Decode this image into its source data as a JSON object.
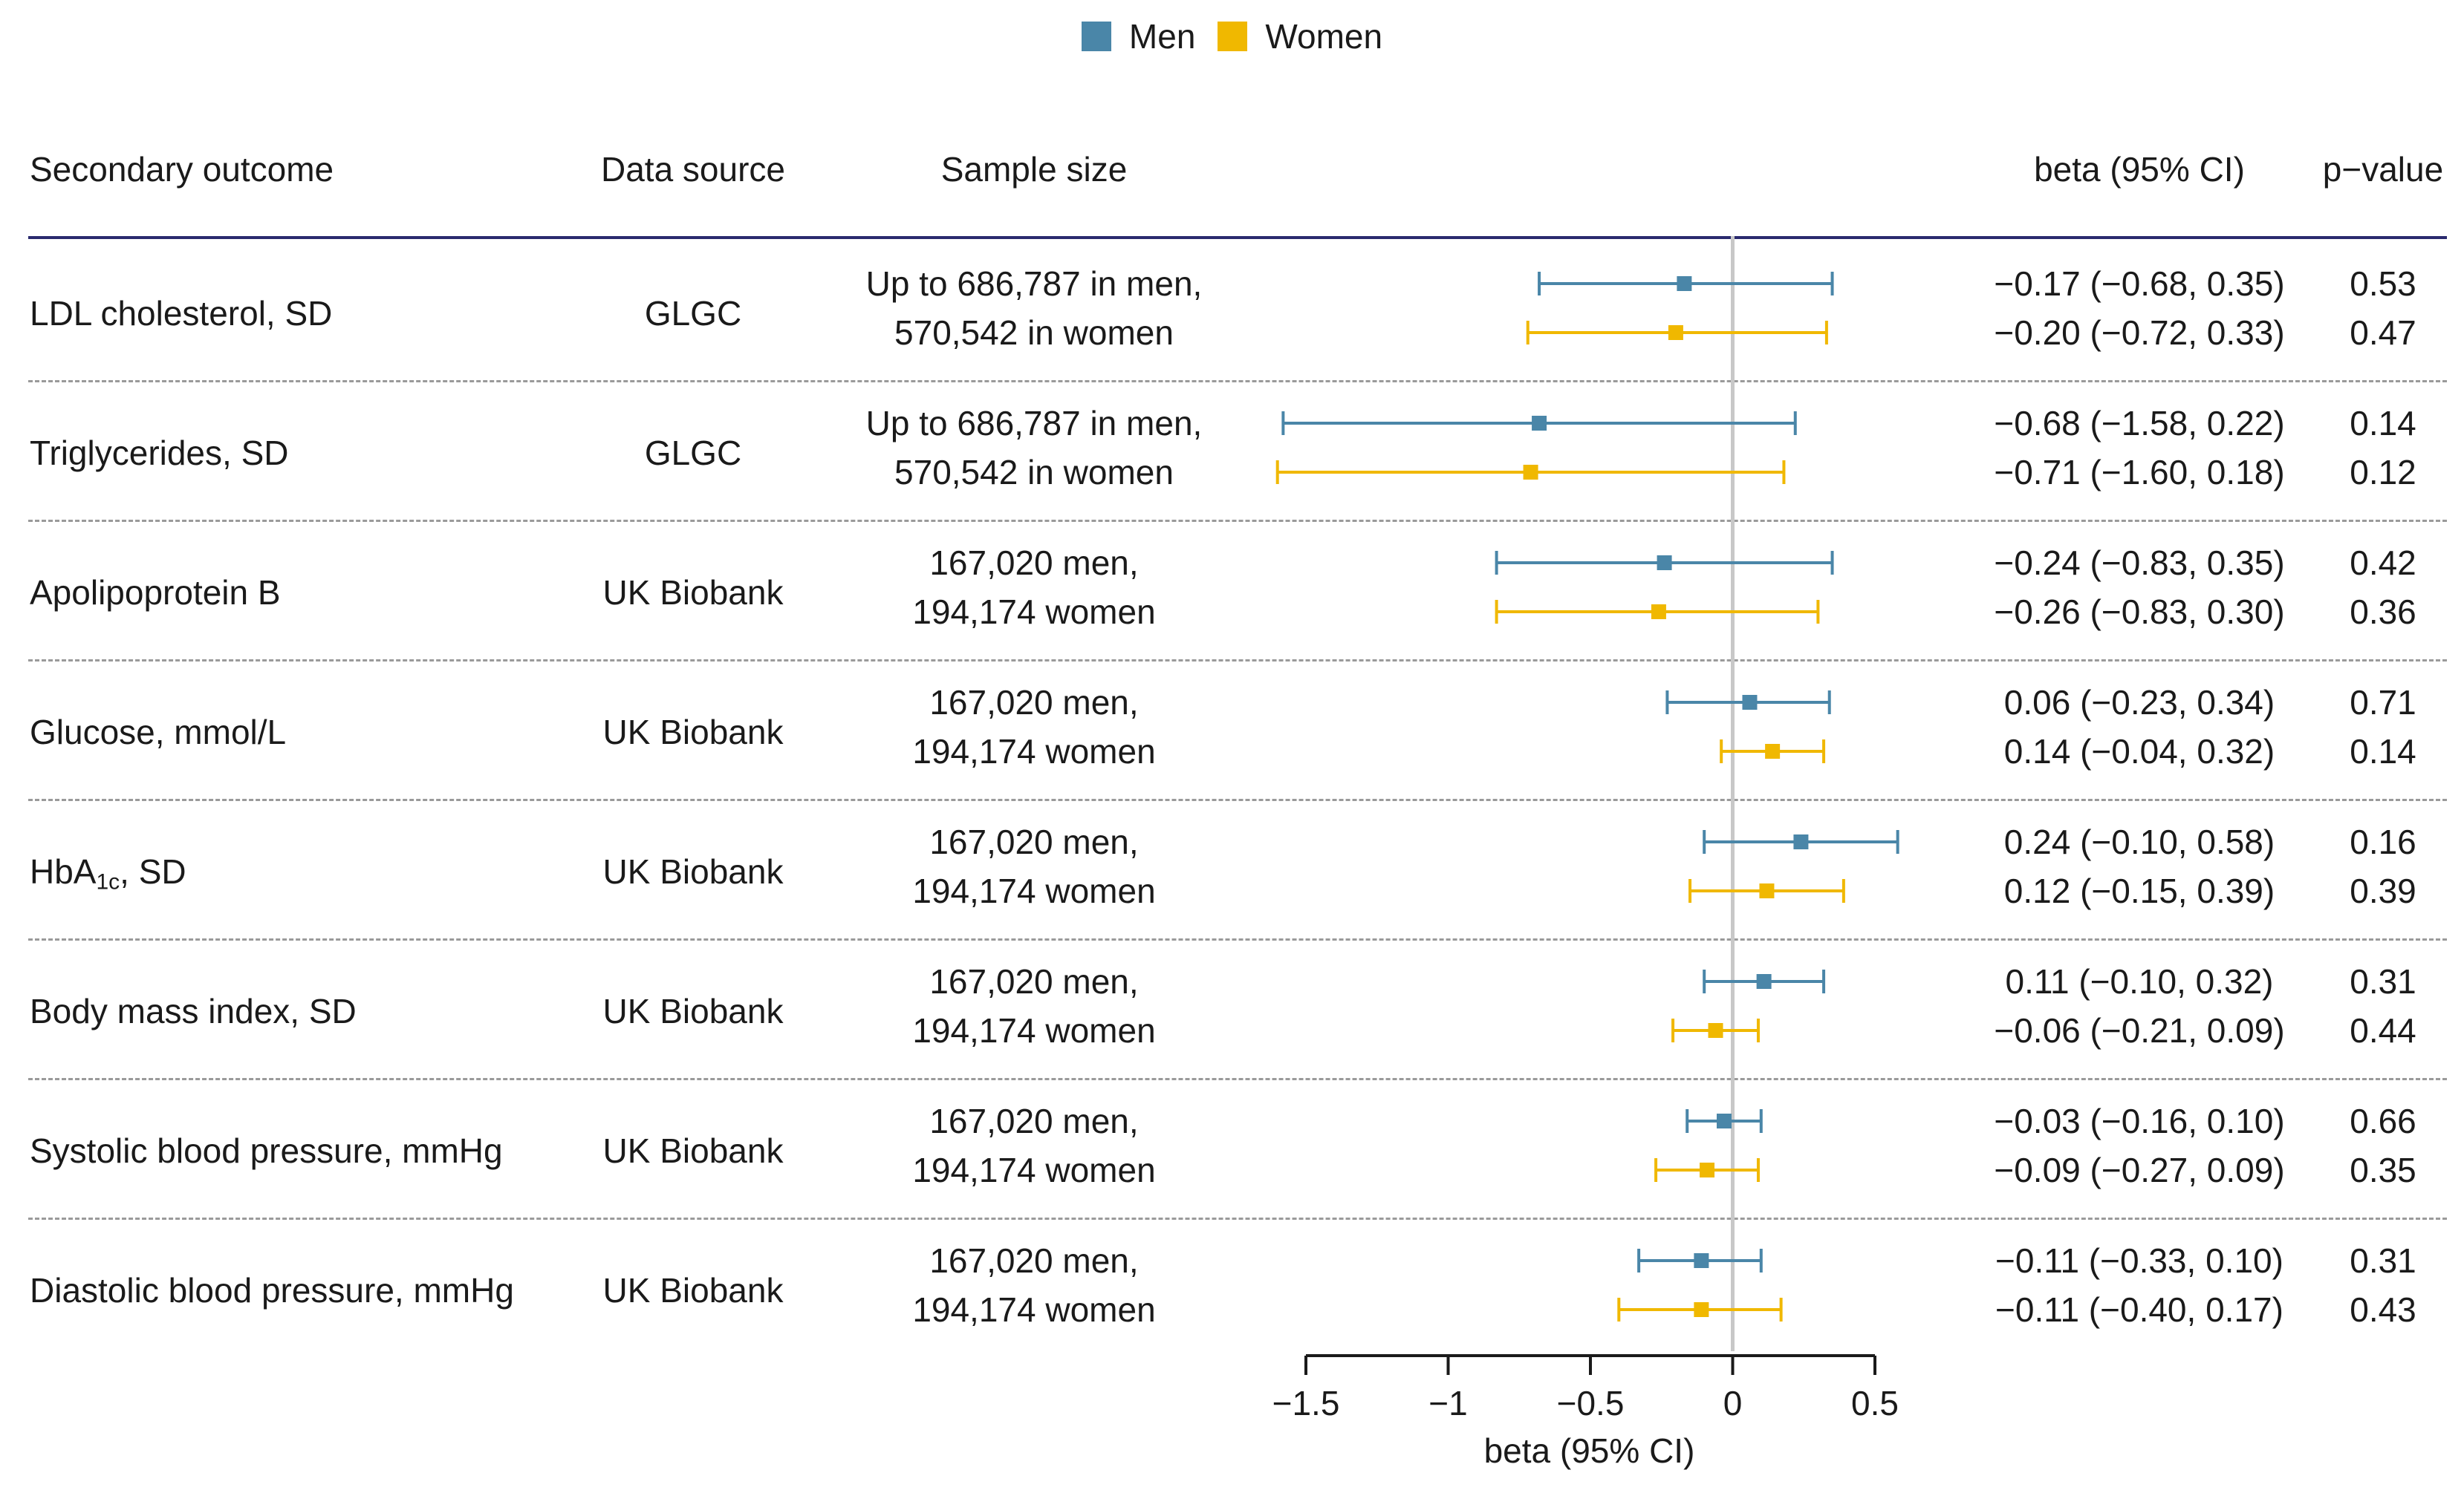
{
  "legend": {
    "items": [
      {
        "label": "Men",
        "color": "#4a86a8"
      },
      {
        "label": "Women",
        "color": "#f0b800"
      }
    ]
  },
  "table": {
    "headers": {
      "outcome": "Secondary outcome",
      "source": "Data source",
      "sample": "Sample size",
      "estimate": "beta (95% CI)",
      "pvalue": "p−value"
    },
    "rows": [
      {
        "outcome": "LDL cholesterol, SD",
        "source": "GLGC",
        "sample_men": "Up to 686,787 in men,",
        "sample_women": "570,542 in women",
        "est_men": "−0.17 (−0.68, 0.35)",
        "est_women": "−0.20 (−0.72, 0.33)",
        "p_men": "0.53",
        "p_women": "0.47"
      },
      {
        "outcome": "Triglycerides, SD",
        "source": "GLGC",
        "sample_men": "Up to 686,787 in men,",
        "sample_women": "570,542 in women",
        "est_men": "−0.68 (−1.58, 0.22)",
        "est_women": "−0.71 (−1.60, 0.18)",
        "p_men": "0.14",
        "p_women": "0.12"
      },
      {
        "outcome": "Apolipoprotein B",
        "source": "UK Biobank",
        "sample_men": "167,020 men,",
        "sample_women": "194,174 women",
        "est_men": "−0.24 (−0.83, 0.35)",
        "est_women": "−0.26 (−0.83, 0.30)",
        "p_men": "0.42",
        "p_women": "0.36"
      },
      {
        "outcome": "Glucose, mmol/L",
        "source": "UK Biobank",
        "sample_men": "167,020 men,",
        "sample_women": "194,174 women",
        "est_men": "0.06 (−0.23, 0.34)",
        "est_women": "0.14 (−0.04, 0.32)",
        "p_men": "0.71",
        "p_women": "0.14"
      },
      {
        "outcome_main": "HbA",
        "outcome_sub": "1c",
        "outcome_tail": ", SD",
        "source": "UK Biobank",
        "sample_men": "167,020 men,",
        "sample_women": "194,174 women",
        "est_men": "0.24 (−0.10, 0.58)",
        "est_women": "0.12 (−0.15, 0.39)",
        "p_men": "0.16",
        "p_women": "0.39"
      },
      {
        "outcome": "Body mass index, SD",
        "source": "UK Biobank",
        "sample_men": "167,020 men,",
        "sample_women": "194,174 women",
        "est_men": "0.11 (−0.10, 0.32)",
        "est_women": "−0.06 (−0.21, 0.09)",
        "p_men": "0.31",
        "p_women": "0.44"
      },
      {
        "outcome": "Systolic blood pressure, mmHg",
        "source": "UK Biobank",
        "sample_men": "167,020 men,",
        "sample_women": "194,174 women",
        "est_men": "−0.03 (−0.16, 0.10)",
        "est_women": "−0.09 (−0.27, 0.09)",
        "p_men": "0.66",
        "p_women": "0.35"
      },
      {
        "outcome": "Diastolic blood pressure, mmHg",
        "source": "UK Biobank",
        "sample_men": "167,020 men,",
        "sample_women": "194,174 women",
        "est_men": "−0.11 (−0.33, 0.10)",
        "est_women": "−0.11 (−0.40, 0.17)",
        "p_men": "0.31",
        "p_women": "0.43"
      }
    ]
  },
  "chart_data": {
    "type": "forest",
    "xlabel": "beta (95% CI)",
    "xlim": [
      -1.5,
      0.5
    ],
    "xticks": [
      -1.5,
      -1,
      -0.5,
      0,
      0.5
    ],
    "xtick_labels": [
      "−1.5",
      "−1",
      "−0.5",
      "0",
      "0.5"
    ],
    "reference_line": 0,
    "categories": [
      "LDL cholesterol, SD",
      "Triglycerides, SD",
      "Apolipoprotein B",
      "Glucose, mmol/L",
      "HbA1c, SD",
      "Body mass index, SD",
      "Systolic blood pressure, mmHg",
      "Diastolic blood pressure, mmHg"
    ],
    "series": [
      {
        "name": "Men",
        "color": "#4a86a8",
        "estimates": [
          -0.17,
          -0.68,
          -0.24,
          0.06,
          0.24,
          0.11,
          -0.03,
          -0.11
        ],
        "lower": [
          -0.68,
          -1.58,
          -0.83,
          -0.23,
          -0.1,
          -0.1,
          -0.16,
          -0.33
        ],
        "upper": [
          0.35,
          0.22,
          0.35,
          0.34,
          0.58,
          0.32,
          0.1,
          0.1
        ]
      },
      {
        "name": "Women",
        "color": "#f0b800",
        "estimates": [
          -0.2,
          -0.71,
          -0.26,
          0.14,
          0.12,
          -0.06,
          -0.09,
          -0.11
        ],
        "lower": [
          -0.72,
          -1.6,
          -0.83,
          -0.04,
          -0.15,
          -0.21,
          -0.27,
          -0.4
        ],
        "upper": [
          0.33,
          0.18,
          0.3,
          0.32,
          0.39,
          0.09,
          0.09,
          0.17
        ]
      }
    ]
  }
}
